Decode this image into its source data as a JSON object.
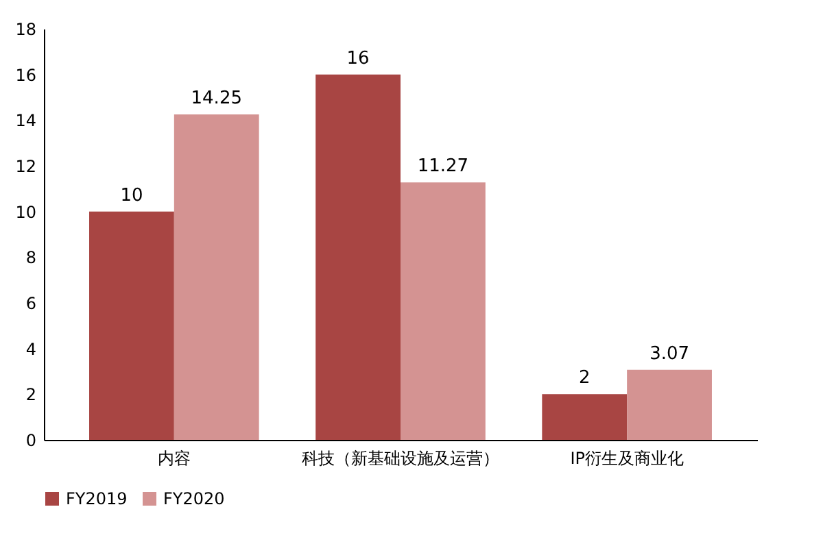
{
  "chart_data": {
    "type": "bar",
    "categories": [
      "内容",
      "科技（新基础设施及运营）",
      "IP衍生及商业化"
    ],
    "series": [
      {
        "name": "FY2019",
        "color": "#a84543",
        "values": [
          10,
          16,
          2
        ]
      },
      {
        "name": "FY2020",
        "color": "#d49392",
        "values": [
          14.25,
          11.27,
          3.07
        ]
      }
    ],
    "ylim": [
      0,
      18
    ],
    "yticks": [
      0,
      2,
      4,
      6,
      8,
      10,
      12,
      14,
      16,
      18
    ],
    "data_labels": true,
    "legend": "bottom"
  }
}
